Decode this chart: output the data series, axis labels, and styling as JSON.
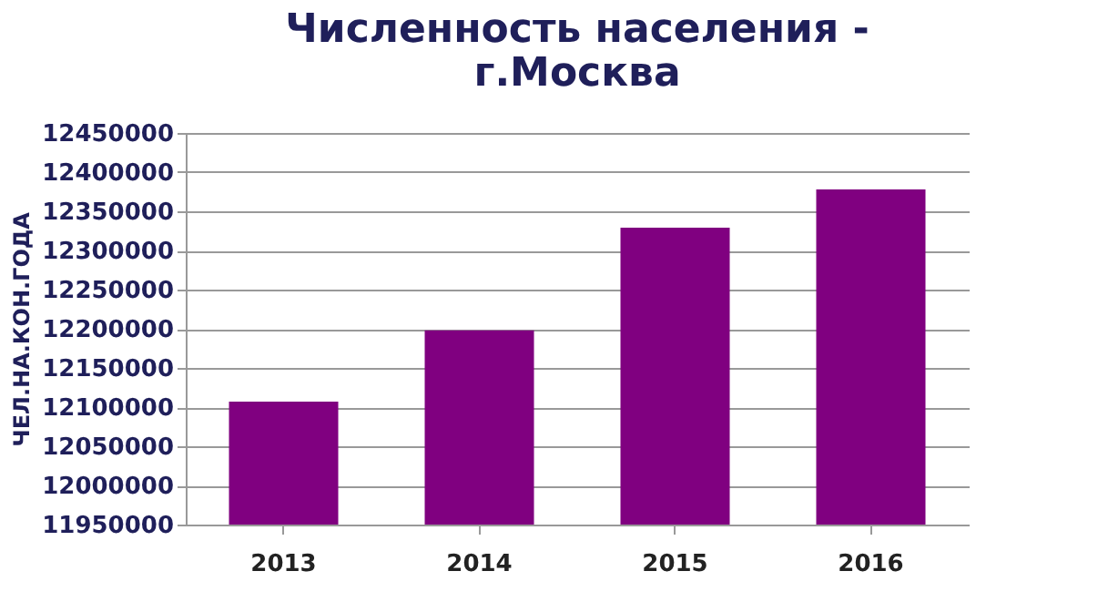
{
  "chart_data": {
    "type": "bar",
    "title": [
      "Численность населения  -",
      "г.Москва"
    ],
    "ylabel": "ЧЕЛ.НА.КОН.ГОДА",
    "categories": [
      "2013",
      "2014",
      "2015",
      "2016"
    ],
    "values": [
      12107000,
      12198000,
      12329000,
      12378000
    ],
    "color": "#800080",
    "ylim": [
      11950000,
      12450000
    ],
    "yticks": [
      11950000,
      12000000,
      12050000,
      12100000,
      12150000,
      12200000,
      12250000,
      12300000,
      12350000,
      12400000,
      12450000
    ],
    "grid": "y"
  }
}
